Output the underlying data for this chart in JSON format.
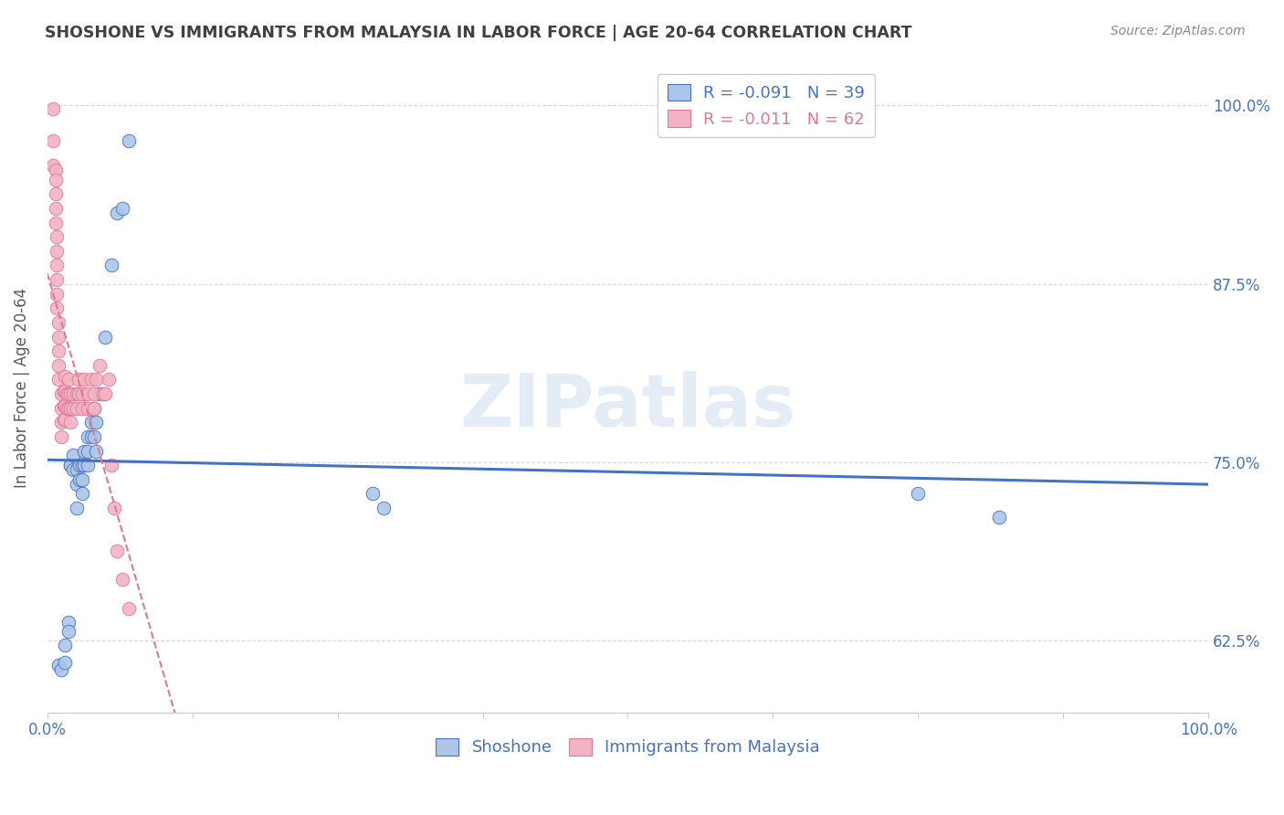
{
  "title": "SHOSHONE VS IMMIGRANTS FROM MALAYSIA IN LABOR FORCE | AGE 20-64 CORRELATION CHART",
  "source": "Source: ZipAtlas.com",
  "ylabel": "In Labor Force | Age 20-64",
  "xlim": [
    0.0,
    1.0
  ],
  "ylim": [
    0.575,
    1.03
  ],
  "yticks": [
    0.625,
    0.75,
    0.875,
    1.0
  ],
  "ytick_labels": [
    "62.5%",
    "75.0%",
    "87.5%",
    "100.0%"
  ],
  "xticks": [
    0.0,
    0.125,
    0.25,
    0.375,
    0.5,
    0.625,
    0.75,
    0.875,
    1.0
  ],
  "xtick_labels": [
    "0.0%",
    "",
    "",
    "",
    "",
    "",
    "",
    "",
    "100.0%"
  ],
  "legend_r1": "-0.091",
  "legend_n1": "39",
  "legend_r2": "-0.011",
  "legend_n2": "62",
  "blue_color": "#adc6e8",
  "pink_color": "#f2b4c2",
  "blue_line_color": "#4472c4",
  "pink_line_color": "#e07898",
  "title_color": "#404040",
  "axis_label_color": "#595959",
  "tick_color": "#4472c4",
  "watermark": "ZIPatlas",
  "shoshone_x": [
    0.01,
    0.012,
    0.015,
    0.015,
    0.018,
    0.018,
    0.02,
    0.02,
    0.022,
    0.022,
    0.025,
    0.025,
    0.025,
    0.028,
    0.028,
    0.03,
    0.03,
    0.03,
    0.032,
    0.032,
    0.035,
    0.035,
    0.035,
    0.038,
    0.038,
    0.04,
    0.04,
    0.042,
    0.042,
    0.045,
    0.05,
    0.055,
    0.06,
    0.065,
    0.07,
    0.28,
    0.29,
    0.75,
    0.82
  ],
  "shoshone_y": [
    0.608,
    0.605,
    0.622,
    0.61,
    0.638,
    0.632,
    0.748,
    0.748,
    0.755,
    0.745,
    0.745,
    0.735,
    0.718,
    0.748,
    0.738,
    0.748,
    0.738,
    0.728,
    0.758,
    0.748,
    0.768,
    0.758,
    0.748,
    0.778,
    0.768,
    0.788,
    0.768,
    0.778,
    0.758,
    0.798,
    0.838,
    0.888,
    0.925,
    0.928,
    0.975,
    0.728,
    0.718,
    0.728,
    0.712
  ],
  "malaysia_x": [
    0.005,
    0.005,
    0.005,
    0.007,
    0.007,
    0.007,
    0.007,
    0.007,
    0.008,
    0.008,
    0.008,
    0.008,
    0.008,
    0.008,
    0.01,
    0.01,
    0.01,
    0.01,
    0.01,
    0.012,
    0.012,
    0.012,
    0.012,
    0.014,
    0.014,
    0.014,
    0.015,
    0.015,
    0.015,
    0.015,
    0.017,
    0.017,
    0.018,
    0.018,
    0.018,
    0.02,
    0.02,
    0.02,
    0.022,
    0.022,
    0.025,
    0.025,
    0.027,
    0.027,
    0.03,
    0.03,
    0.032,
    0.035,
    0.035,
    0.038,
    0.04,
    0.04,
    0.042,
    0.045,
    0.048,
    0.05,
    0.053,
    0.055,
    0.058,
    0.06,
    0.065,
    0.07
  ],
  "malaysia_y": [
    0.998,
    0.975,
    0.958,
    0.955,
    0.948,
    0.938,
    0.928,
    0.918,
    0.908,
    0.898,
    0.888,
    0.878,
    0.868,
    0.858,
    0.848,
    0.838,
    0.828,
    0.818,
    0.808,
    0.798,
    0.788,
    0.778,
    0.768,
    0.8,
    0.79,
    0.78,
    0.81,
    0.8,
    0.79,
    0.78,
    0.798,
    0.788,
    0.808,
    0.798,
    0.788,
    0.798,
    0.788,
    0.778,
    0.798,
    0.788,
    0.798,
    0.788,
    0.808,
    0.798,
    0.798,
    0.788,
    0.808,
    0.798,
    0.788,
    0.808,
    0.798,
    0.788,
    0.808,
    0.818,
    0.798,
    0.798,
    0.808,
    0.748,
    0.718,
    0.688,
    0.668,
    0.648
  ]
}
